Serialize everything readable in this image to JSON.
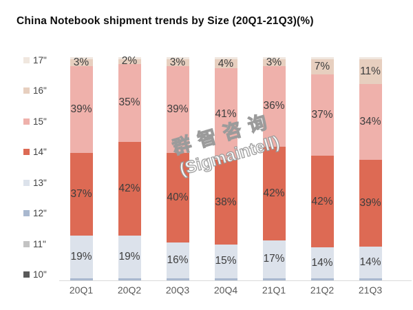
{
  "title": "China Notebook shipment trends by Size (20Q1-21Q3)(%)",
  "watermark": {
    "line1": "群智咨询",
    "line2": "(Sigmaintell)"
  },
  "colors": {
    "label_text": "#3d3d3d",
    "axis_text": "#595959",
    "axis_line": "#d9d9d9",
    "size_17": "#f0e7df",
    "size_16": "#e7cfbf",
    "size_15": "#efb1ab",
    "size_14": "#dd6a54",
    "size_13": "#dce2eb",
    "size_12": "#a9b8cf",
    "size_11": "#c3c3c3",
    "size_10": "#5a5a5a"
  },
  "legend": {
    "items": [
      {
        "label": "17\"",
        "color": "#f0e7df"
      },
      {
        "label": "16\"",
        "color": "#e7cfbf"
      },
      {
        "label": "15\"",
        "color": "#efb1ab"
      },
      {
        "label": "14\"",
        "color": "#dd6a54"
      },
      {
        "label": "13\"",
        "color": "#dce2eb"
      },
      {
        "label": "12\"",
        "color": "#a9b8cf"
      },
      {
        "label": "11\"",
        "color": "#c3c3c3"
      },
      {
        "label": "10\"",
        "color": "#5a5a5a"
      }
    ]
  },
  "chart_data": {
    "type": "bar",
    "stacked": true,
    "title": "China Notebook shipment trends by Size (20Q1-21Q3)(%)",
    "categories": [
      "20Q1",
      "20Q2",
      "20Q3",
      "20Q4",
      "21Q1",
      "21Q2",
      "21Q3"
    ],
    "series": [
      {
        "name": "17\"",
        "color": "#f0e7df",
        "labeled": false,
        "values": [
          1,
          1,
          1,
          1,
          1,
          1,
          1
        ]
      },
      {
        "name": "16\"",
        "color": "#e7cfbf",
        "labeled": true,
        "values": [
          3,
          2,
          3,
          4,
          3,
          7,
          11
        ]
      },
      {
        "name": "15\"",
        "color": "#efb1ab",
        "labeled": true,
        "values": [
          39,
          35,
          39,
          41,
          36,
          37,
          34
        ]
      },
      {
        "name": "14\"",
        "color": "#dd6a54",
        "labeled": true,
        "values": [
          37,
          42,
          40,
          38,
          42,
          42,
          39
        ]
      },
      {
        "name": "13\"",
        "color": "#dce2eb",
        "labeled": true,
        "values": [
          19,
          19,
          16,
          15,
          17,
          14,
          14
        ]
      },
      {
        "name": "12\"",
        "color": "#a9b8cf",
        "labeled": false,
        "values": [
          1,
          1,
          1,
          1,
          1,
          1,
          1
        ]
      }
    ],
    "value_suffix": "%",
    "ylim": [
      0,
      100
    ],
    "grid": false,
    "legend_position": "left",
    "note": "Stacked 100% columns, top-to-bottom order 17\" to 12\"; 17\" and 12\" are thin unlabeled slivers (~1%); 11\" and 10\" appear in legend only."
  }
}
